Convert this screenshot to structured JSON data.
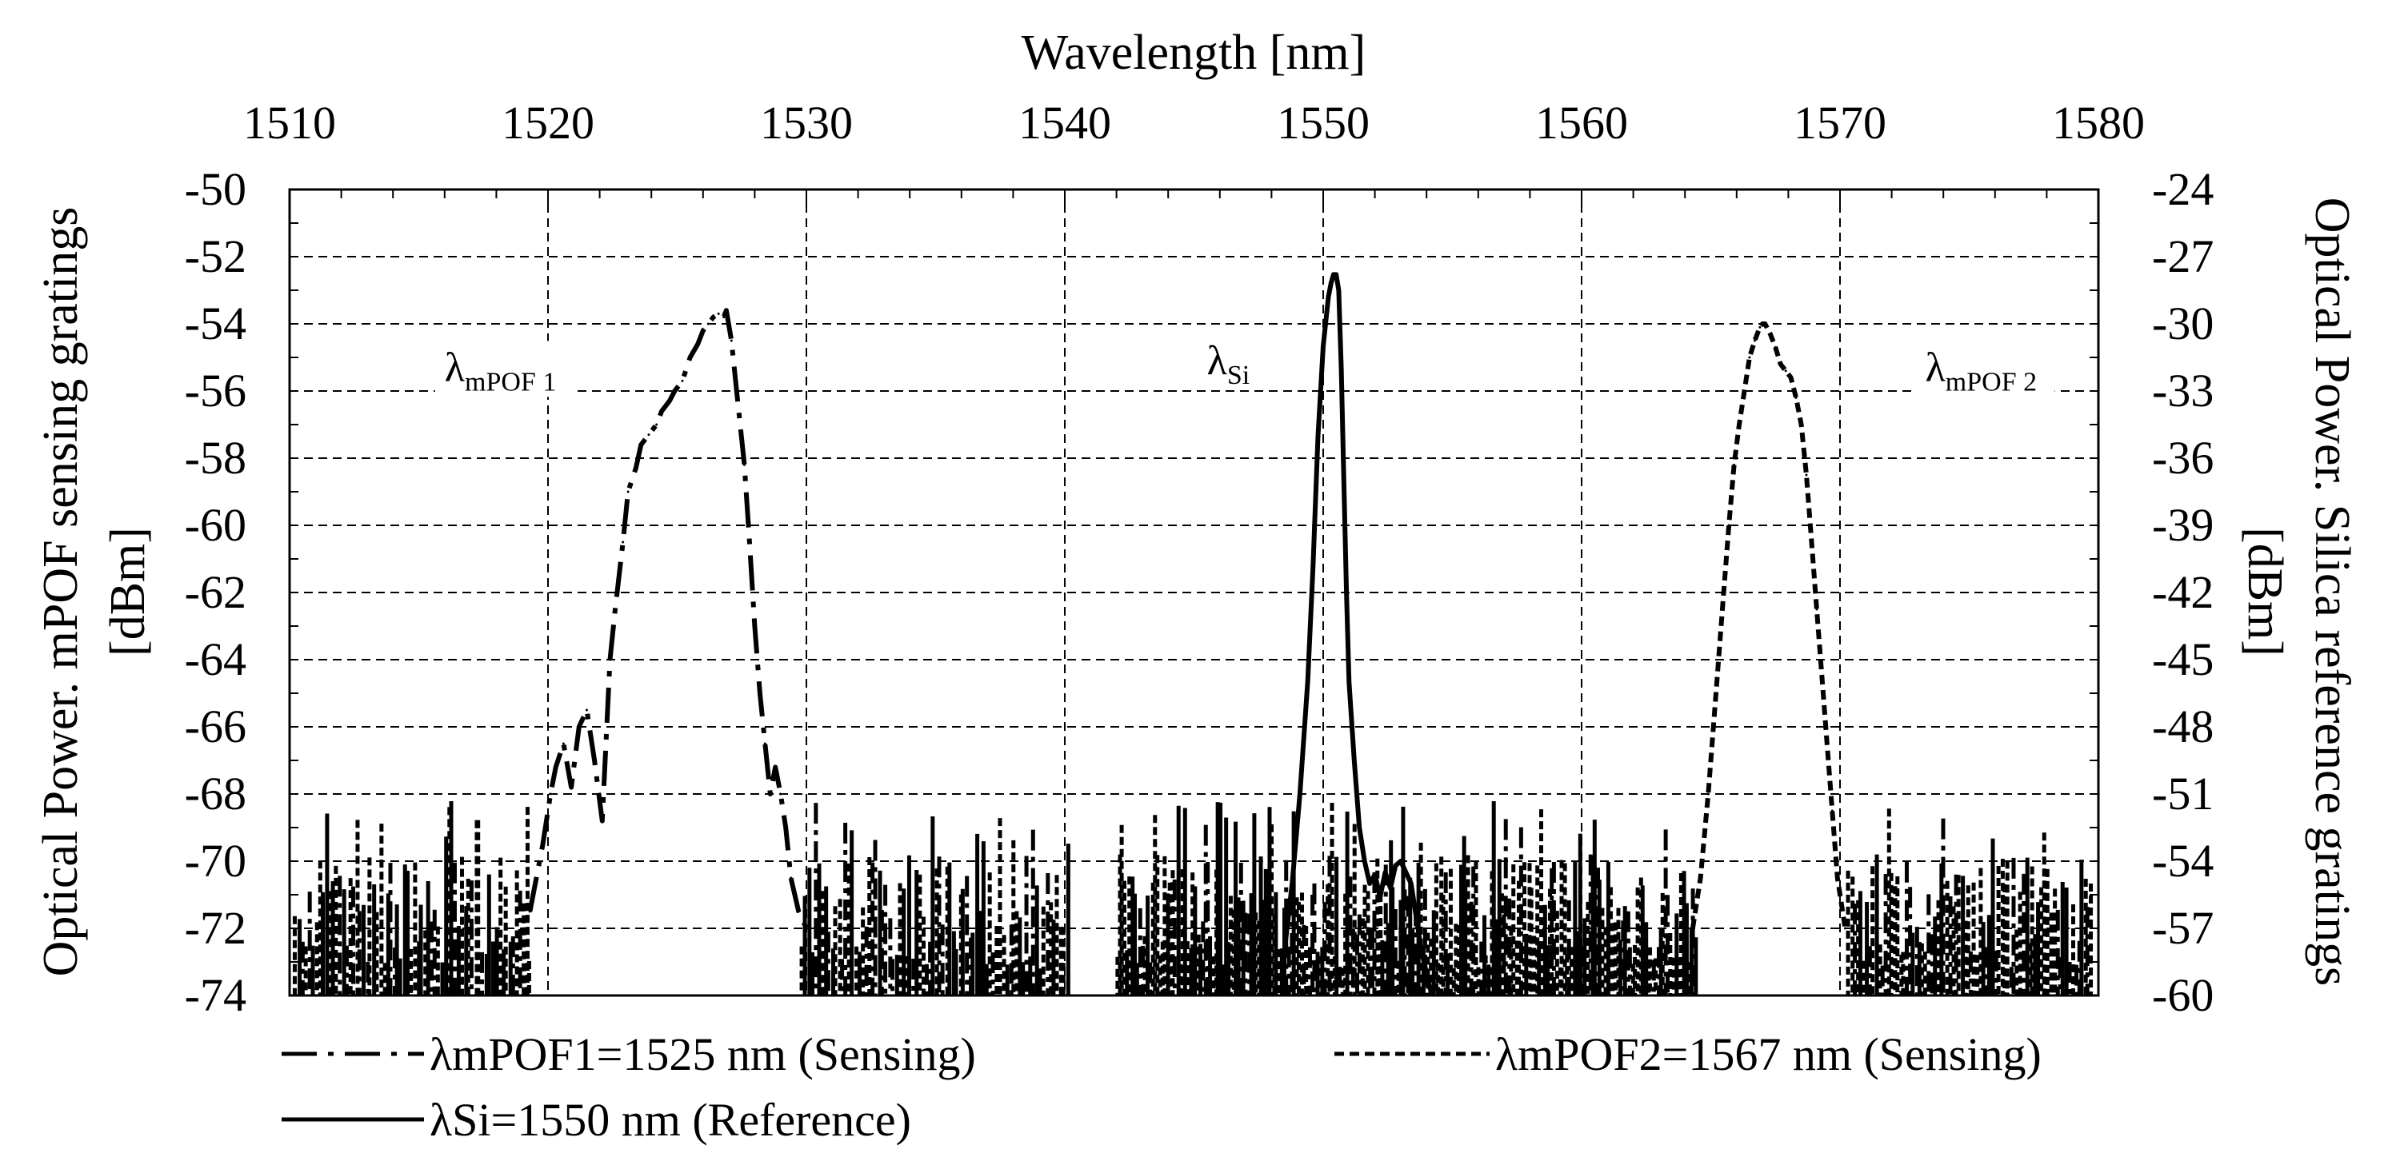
{
  "chart_data": {
    "type": "line",
    "title": "",
    "x_axis": {
      "label": "Wavelength [nm]",
      "position": "top",
      "range": [
        1510,
        1580
      ],
      "ticks": [
        1510,
        1520,
        1530,
        1540,
        1550,
        1560,
        1570,
        1580
      ],
      "tick_labels": [
        "1510",
        "1520",
        "1530",
        "1540",
        "1550",
        "1560",
        "1570",
        "1580"
      ]
    },
    "y_left": {
      "label_line1": "Optical Power. mPOF sensing gratings",
      "label_line2": "[dBm]",
      "range": [
        -74,
        -50
      ],
      "ticks": [
        -50,
        -52,
        -54,
        -56,
        -58,
        -60,
        -62,
        -64,
        -66,
        -68,
        -70,
        -72,
        -74
      ],
      "tick_labels": [
        "-50",
        "-52",
        "-54",
        "-56",
        "-58",
        "-60",
        "-62",
        "-64",
        "-66",
        "-68",
        "-70",
        "-72",
        "-74"
      ]
    },
    "y_right": {
      "label_line1": "Optical Power. Silica reference gratings",
      "label_line2": "[dBm]",
      "range": [
        -60,
        -24
      ],
      "ticks": [
        -24,
        -27,
        -30,
        -33,
        -36,
        -39,
        -42,
        -45,
        -48,
        -51,
        -54,
        -57,
        -60
      ],
      "tick_labels": [
        "-24",
        "-27",
        "-30",
        "-33",
        "-36",
        "-39",
        "-42",
        "-45",
        "-48",
        "-51",
        "-54",
        "-57",
        "-60"
      ]
    },
    "grid": true,
    "legend_position": "bottom",
    "annotations": [
      {
        "main": "λ",
        "sub": "mPOF 1",
        "x": 1516,
        "y": -55.7
      },
      {
        "main": "λ",
        "sub": "Si",
        "x": 1545.5,
        "y": -55.5
      },
      {
        "main": "λ",
        "sub": "mPOF 2",
        "x": 1573.3,
        "y": -55.7
      }
    ],
    "series": [
      {
        "name": "λmPOF1=1525 nm (Sensing)",
        "style": "dash-dot",
        "axis": "left",
        "x": [
          1519.3,
          1519.8,
          1520.1,
          1520.3,
          1520.6,
          1520.9,
          1521.2,
          1521.5,
          1521.8,
          1522.1,
          1522.4,
          1522.6,
          1522.9,
          1523.1,
          1523.4,
          1523.6,
          1523.9,
          1524.2,
          1524.4,
          1524.7,
          1524.9,
          1525.2,
          1525.5,
          1525.8,
          1526.0,
          1526.2,
          1526.4,
          1526.6,
          1526.8,
          1526.9,
          1527.1,
          1527.3,
          1527.6,
          1527.8,
          1528.0,
          1528.2,
          1528.4,
          1528.6,
          1528.8,
          1529.0,
          1529.2,
          1529.4,
          1529.7,
          1530.0
        ],
        "y": [
          -71.5,
          -69.5,
          -68.0,
          -67.2,
          -66.5,
          -67.8,
          -66.0,
          -65.5,
          -67.0,
          -68.8,
          -64.0,
          -62.5,
          -60.5,
          -59.0,
          -58.3,
          -57.6,
          -57.3,
          -57.0,
          -56.6,
          -56.3,
          -56.0,
          -55.7,
          -55.0,
          -54.6,
          -54.2,
          -54.0,
          -53.8,
          -53.7,
          -53.8,
          -53.6,
          -54.5,
          -56.0,
          -58.2,
          -60.5,
          -63.0,
          -65.0,
          -66.5,
          -68.0,
          -67.2,
          -68.0,
          -69.0,
          -70.5,
          -71.5,
          -72.0
        ]
      },
      {
        "name": "λSi=1550 nm (Reference)",
        "style": "solid",
        "axis": "right",
        "x": [
          1548.5,
          1548.8,
          1549.1,
          1549.4,
          1549.6,
          1549.8,
          1550.0,
          1550.2,
          1550.3,
          1550.4,
          1550.5,
          1550.6,
          1550.7,
          1550.8,
          1550.9,
          1551.0,
          1551.2,
          1551.4,
          1551.6,
          1551.8,
          1552.0,
          1552.2,
          1552.4,
          1552.6,
          1552.8,
          1553.0,
          1553.2,
          1553.4,
          1553.6,
          1553.8,
          1554.0,
          1554.2
        ],
        "y": [
          -58.0,
          -55.0,
          -51.0,
          -46.0,
          -41.0,
          -35.0,
          -31.0,
          -28.8,
          -28.2,
          -27.8,
          -27.8,
          -28.5,
          -32.0,
          -37.0,
          -42.0,
          -46.0,
          -49.5,
          -52.5,
          -54.0,
          -55.0,
          -54.6,
          -55.6,
          -54.5,
          -55.2,
          -54.2,
          -54.0,
          -54.5,
          -55.0,
          -56.5,
          -58.0,
          -59.0,
          -60.0
        ]
      },
      {
        "name": "λmPOF2=1567 nm (Sensing)",
        "style": "dashed",
        "axis": "left",
        "x": [
          1564.3,
          1564.6,
          1564.9,
          1565.2,
          1565.5,
          1565.7,
          1565.9,
          1566.1,
          1566.3,
          1566.5,
          1566.7,
          1566.9,
          1567.0,
          1567.1,
          1567.3,
          1567.5,
          1567.7,
          1567.9,
          1568.1,
          1568.3,
          1568.5,
          1568.7,
          1568.9,
          1569.1,
          1569.3,
          1569.5,
          1569.7,
          1569.9,
          1570.2
        ],
        "y": [
          -72.0,
          -70.5,
          -68.0,
          -65.0,
          -62.0,
          -60.0,
          -58.2,
          -57.0,
          -56.0,
          -55.0,
          -54.5,
          -54.1,
          -54.0,
          -54.0,
          -54.3,
          -54.7,
          -55.2,
          -55.4,
          -55.6,
          -56.2,
          -57.0,
          -58.5,
          -60.5,
          -62.5,
          -64.5,
          -66.5,
          -68.5,
          -70.5,
          -72.0
        ]
      }
    ]
  },
  "legend": {
    "entries": [
      "λmPOF1=1525 nm (Sensing)",
      "λmPOF2=1567 nm (Sensing)",
      "λSi=1550 nm (Reference)"
    ]
  }
}
